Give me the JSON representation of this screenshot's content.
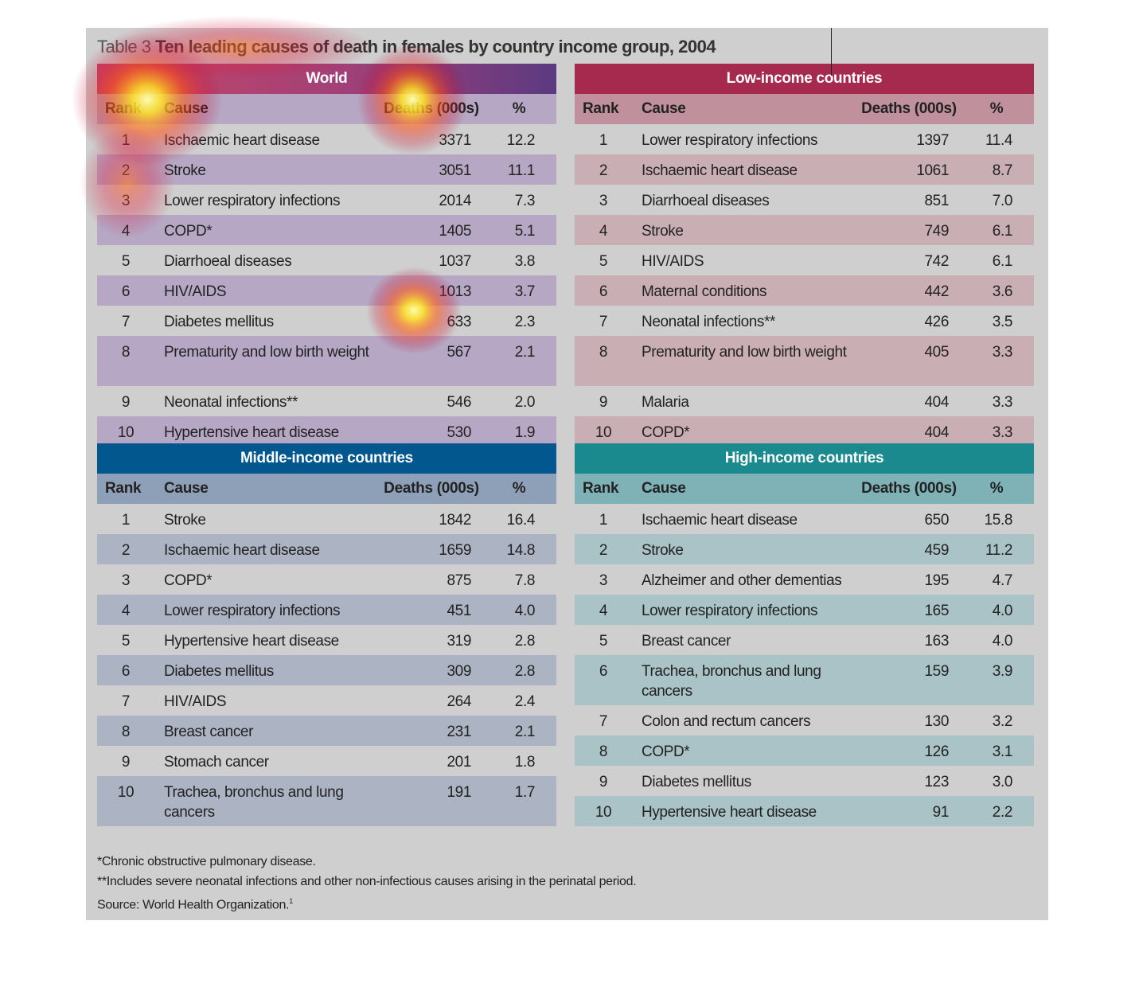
{
  "title": {
    "prefix": "Table 3",
    "main": "Ten leading causes of death in females by country income group, 2004"
  },
  "colors": {
    "panel": "#cfcfcf",
    "world_bar": "#a04078",
    "low_bar": "#a6294e",
    "middle_bar": "#02578e",
    "high_bar": "#1a8a8f"
  },
  "columns": {
    "rank": "Rank",
    "cause": "Cause",
    "deaths": "Deaths (000s)",
    "pct": "%"
  },
  "tables": [
    {
      "id": "world",
      "heading": "World",
      "rows": [
        {
          "rank": "1",
          "cause": "Ischaemic heart disease",
          "deaths": "3371",
          "pct": "12.2"
        },
        {
          "rank": "2",
          "cause": "Stroke",
          "deaths": "3051",
          "pct": "11.1"
        },
        {
          "rank": "3",
          "cause": "Lower respiratory infections",
          "deaths": "2014",
          "pct": "7.3"
        },
        {
          "rank": "4",
          "cause": "COPD*",
          "deaths": "1405",
          "pct": "5.1"
        },
        {
          "rank": "5",
          "cause": "Diarrhoeal diseases",
          "deaths": "1037",
          "pct": "3.8"
        },
        {
          "rank": "6",
          "cause": "HIV/AIDS",
          "deaths": "1013",
          "pct": "3.7"
        },
        {
          "rank": "7",
          "cause": "Diabetes mellitus",
          "deaths": "633",
          "pct": "2.3"
        },
        {
          "rank": "8",
          "cause": "Prematurity and low birth weight",
          "deaths": "567",
          "pct": "2.1"
        },
        {
          "rank": "9",
          "cause": "Neonatal infections**",
          "deaths": "546",
          "pct": "2.0"
        },
        {
          "rank": "10",
          "cause": "Hypertensive heart disease",
          "deaths": "530",
          "pct": "1.9"
        }
      ]
    },
    {
      "id": "low",
      "heading": "Low-income countries",
      "rows": [
        {
          "rank": "1",
          "cause": "Lower respiratory infections",
          "deaths": "1397",
          "pct": "11.4"
        },
        {
          "rank": "2",
          "cause": "Ischaemic heart disease",
          "deaths": "1061",
          "pct": "8.7"
        },
        {
          "rank": "3",
          "cause": "Diarrhoeal diseases",
          "deaths": "851",
          "pct": "7.0"
        },
        {
          "rank": "4",
          "cause": "Stroke",
          "deaths": "749",
          "pct": "6.1"
        },
        {
          "rank": "5",
          "cause": "HIV/AIDS",
          "deaths": "742",
          "pct": "6.1"
        },
        {
          "rank": "6",
          "cause": "Maternal conditions",
          "deaths": "442",
          "pct": "3.6"
        },
        {
          "rank": "7",
          "cause": "Neonatal infections**",
          "deaths": "426",
          "pct": "3.5"
        },
        {
          "rank": "8",
          "cause": "Prematurity and low birth weight",
          "deaths": "405",
          "pct": "3.3"
        },
        {
          "rank": "9",
          "cause": "Malaria",
          "deaths": "404",
          "pct": "3.3"
        },
        {
          "rank": "10",
          "cause": "COPD*",
          "deaths": "404",
          "pct": "3.3"
        }
      ]
    },
    {
      "id": "mid",
      "heading": "Middle-income countries",
      "rows": [
        {
          "rank": "1",
          "cause": "Stroke",
          "deaths": "1842",
          "pct": "16.4"
        },
        {
          "rank": "2",
          "cause": "Ischaemic heart disease",
          "deaths": "1659",
          "pct": "14.8"
        },
        {
          "rank": "3",
          "cause": "COPD*",
          "deaths": "875",
          "pct": "7.8"
        },
        {
          "rank": "4",
          "cause": "Lower respiratory infections",
          "deaths": "451",
          "pct": "4.0"
        },
        {
          "rank": "5",
          "cause": "Hypertensive heart disease",
          "deaths": "319",
          "pct": "2.8"
        },
        {
          "rank": "6",
          "cause": "Diabetes mellitus",
          "deaths": "309",
          "pct": "2.8"
        },
        {
          "rank": "7",
          "cause": "HIV/AIDS",
          "deaths": "264",
          "pct": "2.4"
        },
        {
          "rank": "8",
          "cause": "Breast cancer",
          "deaths": "231",
          "pct": "2.1"
        },
        {
          "rank": "9",
          "cause": "Stomach cancer",
          "deaths": "201",
          "pct": "1.8"
        },
        {
          "rank": "10",
          "cause": "Trachea, bronchus and lung cancers",
          "deaths": "191",
          "pct": "1.7"
        }
      ]
    },
    {
      "id": "high",
      "heading": "High-income countries",
      "rows": [
        {
          "rank": "1",
          "cause": "Ischaemic heart disease",
          "deaths": "650",
          "pct": "15.8"
        },
        {
          "rank": "2",
          "cause": "Stroke",
          "deaths": "459",
          "pct": "11.2"
        },
        {
          "rank": "3",
          "cause": "Alzheimer and other dementias",
          "deaths": "195",
          "pct": "4.7"
        },
        {
          "rank": "4",
          "cause": "Lower respiratory infections",
          "deaths": "165",
          "pct": "4.0"
        },
        {
          "rank": "5",
          "cause": "Breast cancer",
          "deaths": "163",
          "pct": "4.0"
        },
        {
          "rank": "6",
          "cause": "Trachea, bronchus and lung cancers",
          "deaths": "159",
          "pct": "3.9"
        },
        {
          "rank": "7",
          "cause": "Colon and rectum cancers",
          "deaths": "130",
          "pct": "3.2"
        },
        {
          "rank": "8",
          "cause": "COPD*",
          "deaths": "126",
          "pct": "3.1"
        },
        {
          "rank": "9",
          "cause": "Diabetes mellitus",
          "deaths": "123",
          "pct": "3.0"
        },
        {
          "rank": "10",
          "cause": "Hypertensive heart disease",
          "deaths": "91",
          "pct": "2.2"
        }
      ]
    }
  ],
  "notes": {
    "copd": "*Chronic obstructive pulmonary disease.",
    "neonatal": "**Includes severe neonatal infections and other non-infectious causes arising in the perinatal period.",
    "source": "Source: World Health Organization.",
    "source_ref": "1"
  }
}
